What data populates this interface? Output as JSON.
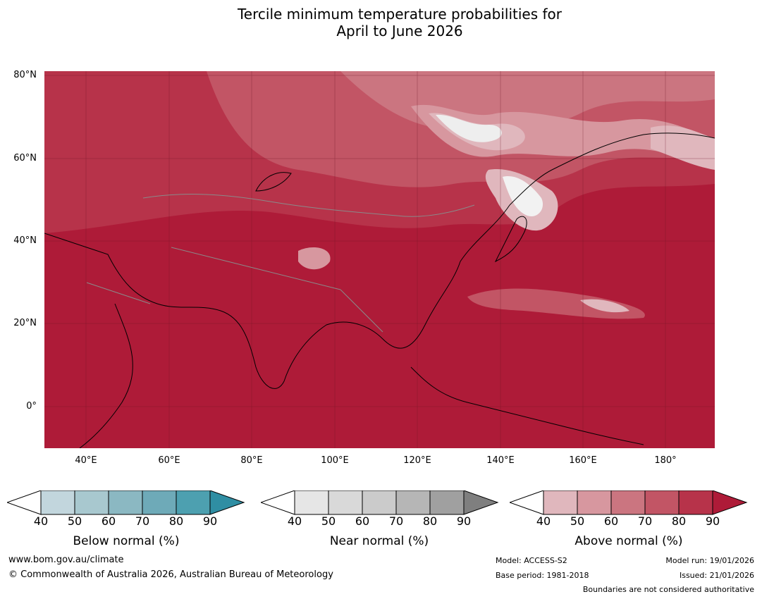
{
  "title": {
    "line1": "Tercile minimum temperature probabilities for",
    "line2": "April to June 2026"
  },
  "axes": {
    "lat_labels": [
      "80°N",
      "60°N",
      "40°N",
      "20°N",
      "0°"
    ],
    "lon_labels": [
      "40°E",
      "60°E",
      "80°E",
      "100°E",
      "120°E",
      "140°E",
      "160°E",
      "180°"
    ],
    "lat_range": [
      -10,
      81
    ],
    "lon_range": [
      30,
      191
    ]
  },
  "legend": {
    "below": {
      "label": "Below normal (%)",
      "ticks": [
        "40",
        "50",
        "60",
        "70",
        "80",
        "90"
      ],
      "colors": [
        "#ffffff",
        "#c2d6dd",
        "#a8c8cf",
        "#8bb8c2",
        "#6eaab8",
        "#4da0b0",
        "#2f8ea3"
      ]
    },
    "near": {
      "label": "Near normal (%)",
      "ticks": [
        "40",
        "50",
        "60",
        "70",
        "80",
        "90"
      ],
      "colors": [
        "#ffffff",
        "#e6e6e6",
        "#d9d9d9",
        "#cbcbcb",
        "#b6b6b6",
        "#a0a0a0",
        "#7f7f7f"
      ]
    },
    "above": {
      "label": "Above normal (%)",
      "ticks": [
        "40",
        "50",
        "60",
        "70",
        "80",
        "90"
      ],
      "colors": [
        "#ffffff",
        "#e0b7bd",
        "#d7979f",
        "#cb7580",
        "#c25565",
        "#b7334a",
        "#ae1b38"
      ]
    }
  },
  "footer": {
    "url": "www.bom.gov.au/climate",
    "copyright": "© Commonwealth of Australia 2026, Australian Bureau of Meteorology",
    "model": "Model: ACCESS-S2",
    "base_period": "Base period: 1981-2018",
    "model_run": "Model run: 19/01/2026",
    "issued": "Issued: 21/01/2026",
    "disclaimer": "Boundaries are not considered authoritative"
  }
}
